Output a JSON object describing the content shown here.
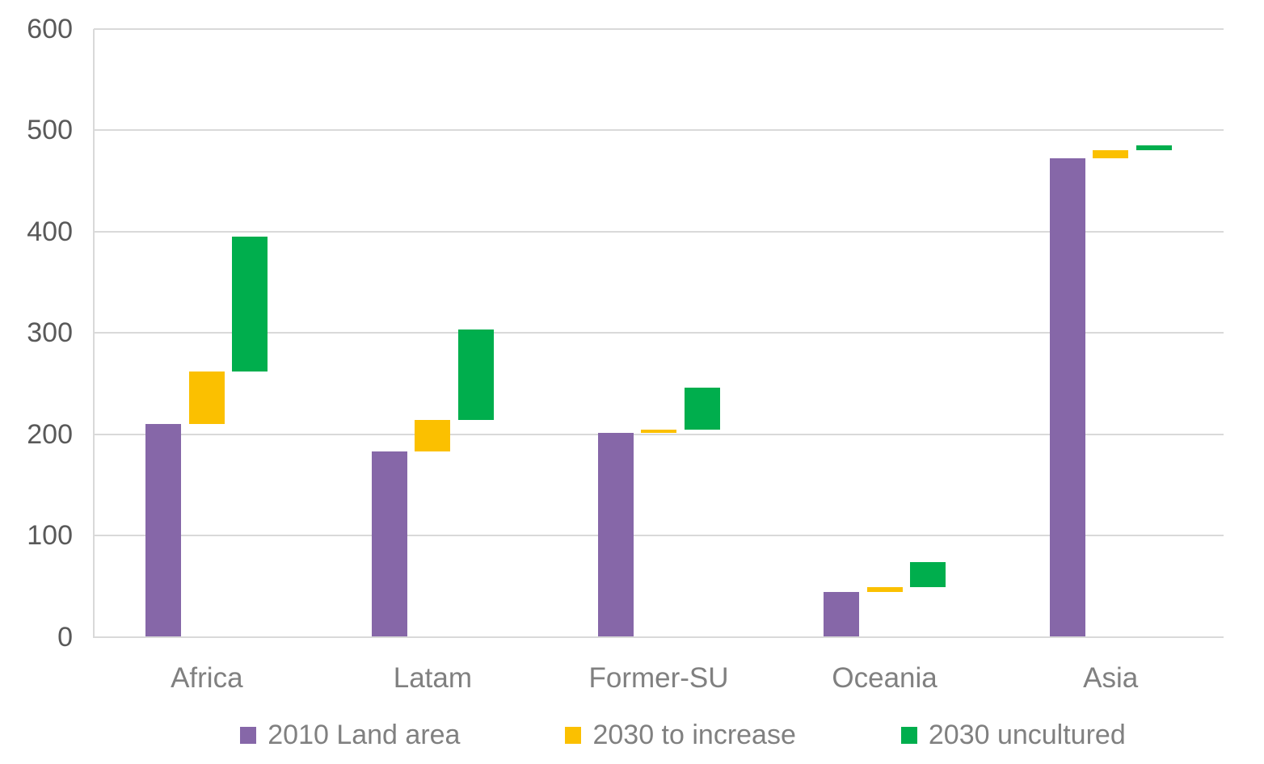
{
  "chart_data": {
    "type": "bar",
    "subtype": "clustered-floating-waterfall",
    "title": "",
    "xlabel": "",
    "ylabel": "",
    "categories": [
      "Africa",
      "Latam",
      "Former-SU",
      "Oceania",
      "Asia"
    ],
    "series": [
      {
        "name": "2010 Land area",
        "color": "#8667A8",
        "segments": [
          [
            0,
            210
          ],
          [
            0,
            183
          ],
          [
            0,
            201
          ],
          [
            0,
            44
          ],
          [
            0,
            472
          ]
        ]
      },
      {
        "name": "2030 to increase",
        "color": "#FBC000",
        "segments": [
          [
            210,
            262
          ],
          [
            183,
            214
          ],
          [
            201,
            204
          ],
          [
            44,
            49
          ],
          [
            472,
            480
          ]
        ]
      },
      {
        "name": "2030 uncultured",
        "color": "#00AE4D",
        "segments": [
          [
            262,
            395
          ],
          [
            214,
            303
          ],
          [
            204,
            246
          ],
          [
            49,
            74
          ],
          [
            480,
            485
          ]
        ]
      }
    ],
    "ylim": [
      0,
      600
    ],
    "ytick_step": 100,
    "ytick_labels": [
      "0",
      "100",
      "200",
      "300",
      "400",
      "500",
      "600"
    ],
    "grid": true,
    "legend_position": "bottom"
  },
  "colors": {
    "gridline": "#D9D9D9",
    "axis_line": "#D9D9D9",
    "ytick_text": "#595959",
    "xlabel_text": "#808080",
    "legend_text": "#808080",
    "background": "#FFFFFF"
  }
}
